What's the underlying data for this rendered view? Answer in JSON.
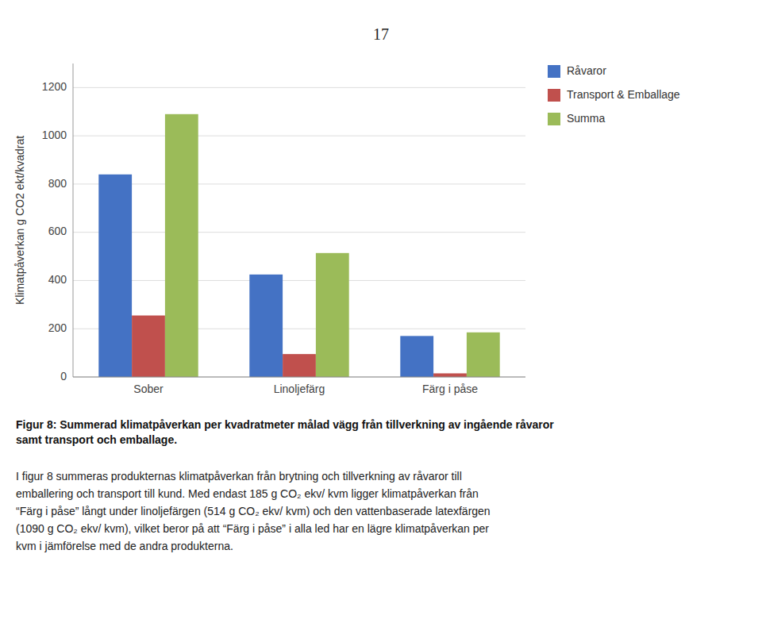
{
  "page_number": "17",
  "caption": "Figur 8: Summerad klimatpåverkan per kvadratmeter målad vägg från tillverkning av ingående råvaror\nsamt transport och emballage.",
  "body_text": "I figur 8 summeras produkternas klimatpåverkan från brytning och tillverkning av råvaror till\nemballering och transport till kund. Med endast 185 g CO₂ ekv/ kvm ligger klimatpåverkan från\n“Färg i påse” långt under linoljefärgen (514 g CO₂ ekv/ kvm) och den vattenbaserade latexfärgen\n(1090 g CO₂ ekv/ kvm), vilket beror på att “Färg i påse” i alla led har en lägre klimatpåverkan per\nkvm i jämförelse med de andra produkterna.",
  "chart_data": {
    "type": "bar",
    "categories": [
      "Sober",
      "Linoljefärg",
      "Färg i påse"
    ],
    "series": [
      {
        "name": "Råvaror",
        "color": "#4472C4",
        "values": [
          840,
          425,
          170
        ]
      },
      {
        "name": "Transport & Emballage",
        "color": "#C0504D",
        "values": [
          255,
          95,
          15
        ]
      },
      {
        "name": "Summa",
        "color": "#9BBB59",
        "values": [
          1090,
          514,
          185
        ]
      }
    ],
    "y_label": "Klimatpåverkan g CO2 ekt/kvadrat",
    "ylim": [
      0,
      1300
    ],
    "yticks": [
      0,
      200,
      400,
      600,
      800,
      1000,
      1200
    ],
    "grid": true,
    "legend": "right"
  }
}
